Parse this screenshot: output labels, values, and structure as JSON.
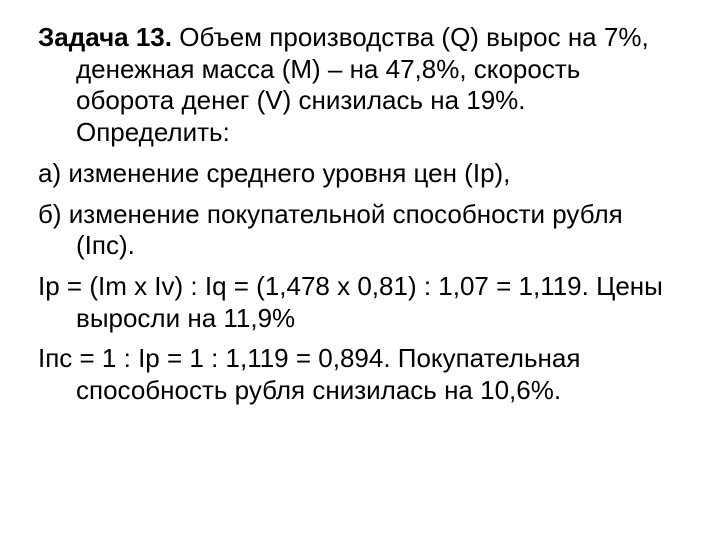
{
  "slide": {
    "background_color": "#ffffff",
    "text_color": "#000000",
    "font_size_pt": 20,
    "font_family": "Arial",
    "line_height": 1.22,
    "title_label": "Задача 13.",
    "p1_tail": " Объем производства (Q) вырос на 7%, денежная масса (М) – на 47,8%, скорость оборота денег (V) снизилась на 19%. Определить:",
    "p2": "а) изменение среднего уровня цен (Iр),",
    "p3": "б) изменение покупательной способности рубля (Iпс).",
    "p4": "Iр = (Im x Iv) : Iq = (1,478 х 0,81) : 1,07 = 1,119. Цены выросли на 11,9%",
    "p5": "Iпс = 1 : Iр = 1 : 1,119 = 0,894. Покупательная способность рубля снизилась на 10,6%."
  }
}
